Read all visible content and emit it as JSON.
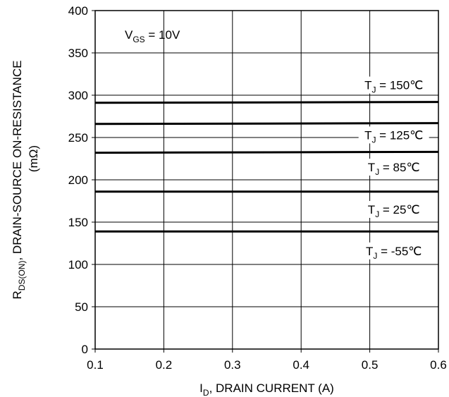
{
  "chart_data": {
    "type": "line",
    "xlabel": {
      "main": "I",
      "sub": "D",
      "rest": ", DRAIN CURRENT (A)"
    },
    "ylabel": {
      "prefix_main": "R",
      "prefix_sub": "DS(ON)",
      "rest": ",   DRAIN-SOURCE ON-RESISTANCE",
      "unit": "(mΩ)"
    },
    "xlim": [
      0.1,
      0.6
    ],
    "ylim": [
      0,
      400
    ],
    "x_ticks": [
      0.1,
      0.2,
      0.3,
      0.4,
      0.5,
      0.6
    ],
    "x_tick_labels": [
      "0.1",
      "0.2",
      "0.3",
      "0.4",
      "0.5",
      "0.6"
    ],
    "y_ticks": [
      0,
      50,
      100,
      150,
      200,
      250,
      300,
      350,
      400
    ],
    "y_tick_labels": [
      "0",
      "50",
      "100",
      "150",
      "200",
      "250",
      "300",
      "350",
      "400"
    ],
    "grid": true,
    "annotation": {
      "main": "V",
      "sub": "GS",
      "rest": " = 10V"
    },
    "series": [
      {
        "name_main": "T",
        "name_sub": "J",
        "name_rest": " = 150℃",
        "x": [
          0.1,
          0.6
        ],
        "y": [
          291,
          292
        ],
        "label_at": [
          0.535,
          307
        ]
      },
      {
        "name_main": "T",
        "name_sub": "J",
        "name_rest": " = 125℃",
        "x": [
          0.1,
          0.6
        ],
        "y": [
          266,
          267
        ],
        "label_at": [
          0.535,
          248
        ]
      },
      {
        "name_main": "T",
        "name_sub": "J",
        "name_rest": " = 85℃",
        "x": [
          0.1,
          0.6
        ],
        "y": [
          232,
          233
        ],
        "label_at": [
          0.535,
          210
        ]
      },
      {
        "name_main": "T",
        "name_sub": "J",
        "name_rest": " = 25℃",
        "x": [
          0.1,
          0.6
        ],
        "y": [
          186,
          186
        ],
        "label_at": [
          0.535,
          160
        ]
      },
      {
        "name_main": "T",
        "name_sub": "J",
        "name_rest": " = -55℃",
        "x": [
          0.1,
          0.6
        ],
        "y": [
          139,
          139
        ],
        "label_at": [
          0.535,
          111
        ]
      }
    ]
  }
}
